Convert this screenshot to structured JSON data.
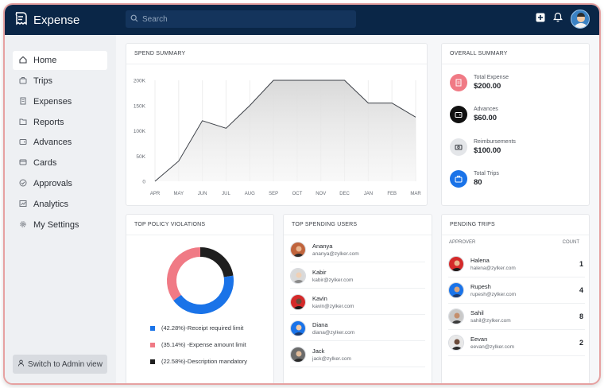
{
  "app": {
    "name": "Expense"
  },
  "search": {
    "placeholder": "Search"
  },
  "sidebar": {
    "items": [
      {
        "label": "Home",
        "icon": "home-icon",
        "active": true
      },
      {
        "label": "Trips",
        "icon": "trips-icon"
      },
      {
        "label": "Expenses",
        "icon": "expenses-icon"
      },
      {
        "label": "Reports",
        "icon": "reports-icon"
      },
      {
        "label": "Advances",
        "icon": "advances-icon"
      },
      {
        "label": "Cards",
        "icon": "cards-icon"
      },
      {
        "label": "Approvals",
        "icon": "approvals-icon"
      },
      {
        "label": "Analytics",
        "icon": "analytics-icon"
      },
      {
        "label": "My Settings",
        "icon": "settings-icon"
      }
    ],
    "admin_button": "Switch to Admin view"
  },
  "spend_summary": {
    "title": "SPEND SUMMARY",
    "chart_data": {
      "type": "area",
      "categories": [
        "APR",
        "MAY",
        "JUN",
        "JUL",
        "AUG",
        "SEP",
        "OCT",
        "NOV",
        "DEC",
        "JAN",
        "FEB",
        "MAR"
      ],
      "values": [
        0,
        40000,
        120000,
        105000,
        150000,
        200000,
        200000,
        200000,
        200000,
        155000,
        155000,
        127000
      ],
      "yticks": [
        "200K",
        "150K",
        "100K",
        "50K",
        "0"
      ],
      "ylim": [
        0,
        200000
      ],
      "grid": "vertical"
    }
  },
  "overall_summary": {
    "title": "OVERALL SUMMARY",
    "items": [
      {
        "label": "Total Expense",
        "value": "$200.00",
        "icon": "receipt-icon",
        "color": "#f07a85"
      },
      {
        "label": "Advances",
        "value": "$60.00",
        "icon": "wallet-icon",
        "color": "#111111"
      },
      {
        "label": "Reimbursements",
        "value": "$100.00",
        "icon": "cash-icon",
        "color": "#e4e6e9"
      },
      {
        "label": "Total Trips",
        "value": "80",
        "icon": "briefcase-icon",
        "color": "#1a73e8"
      }
    ]
  },
  "policy_violations": {
    "title": "TOP POLICY VIOLATIONS",
    "chart_data": {
      "type": "pie",
      "donut": true,
      "slices": [
        {
          "label": "(42.28%)-Receipt required limit",
          "value": 42.28,
          "color": "#1a73e8"
        },
        {
          "label": "(35.14%) -Expense amount limit",
          "value": 35.14,
          "color": "#f07a85"
        },
        {
          "label": "(22.58%)-Description mandatory",
          "value": 22.58,
          "color": "#1f1f1f"
        }
      ]
    }
  },
  "top_users": {
    "title": "TOP SPENDING USERS",
    "users": [
      {
        "name": "Ananya",
        "email": "ananya@zylker.com",
        "color": "#c0643c"
      },
      {
        "name": "Kabir",
        "email": "kabir@zylker.com",
        "color": "#d9d9d9"
      },
      {
        "name": "Kavin",
        "email": "kavin@zylker.com",
        "color": "#d42a2a"
      },
      {
        "name": "Diana",
        "email": "diana@zylker.com",
        "color": "#1a73e8"
      },
      {
        "name": "Jack",
        "email": "jack@zylker.com",
        "color": "#6b6b6b"
      }
    ]
  },
  "pending_trips": {
    "title": "PENDING TRIPS",
    "col_approver": "APPROVER",
    "col_count": "COUNT",
    "rows": [
      {
        "name": "Halena",
        "email": "halena@zylker.com",
        "count": "1",
        "color": "#d42a2a"
      },
      {
        "name": "Rupesh",
        "email": "rupesh@zylker.com",
        "count": "4",
        "color": "#1a73e8"
      },
      {
        "name": "Sahil",
        "email": "sahil@zylker.com",
        "count": "8",
        "color": "#c9c9c9"
      },
      {
        "name": "Eevan",
        "email": "eevan@zylker.com",
        "count": "2",
        "color": "#e8e8e8"
      }
    ]
  }
}
